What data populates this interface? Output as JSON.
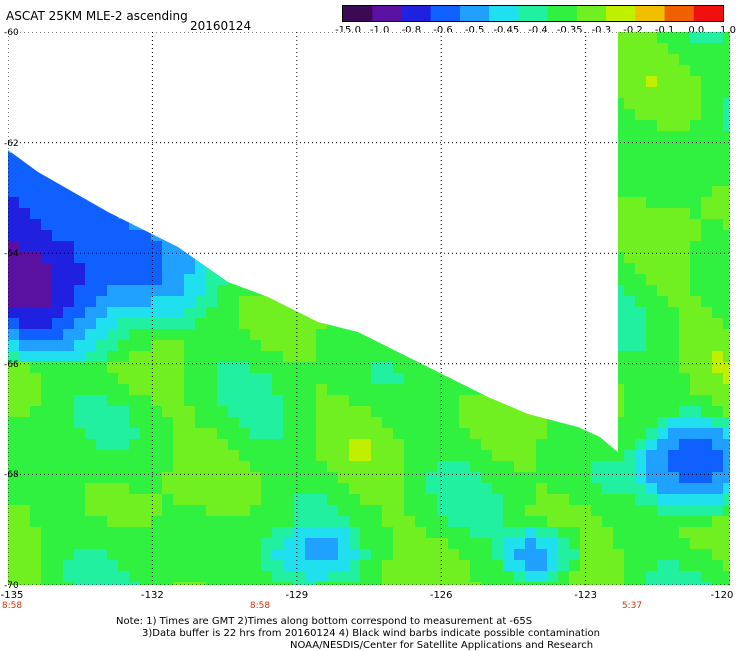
{
  "header": {
    "title": "ASCAT 25KM MLE-2 ascending",
    "date": "20160124"
  },
  "colorbar": {
    "labels": [
      "-15.0",
      "-1.0",
      "-0.8",
      "-0.6",
      "-0.5",
      "-0.45",
      "-0.4",
      "-0.35",
      "-0.3",
      "-0.2",
      "-0.1",
      "0.0",
      "1.0"
    ],
    "colors": [
      "#3a0a55",
      "#5a10a0",
      "#2020e0",
      "#1060ff",
      "#20a0ff",
      "#20e0f0",
      "#20f0a0",
      "#30f040",
      "#70f020",
      "#c0f000",
      "#f0c000",
      "#f06000",
      "#f01010"
    ]
  },
  "axes": {
    "lat_labels": [
      "-60",
      "-62",
      "-64",
      "-66",
      "-68",
      "-70"
    ],
    "lon_labels": [
      "-135",
      "-132",
      "-129",
      "-126",
      "-123",
      "-120"
    ],
    "lat_range": [
      -60,
      -70
    ],
    "lon_range": [
      -135,
      -120
    ]
  },
  "times": [
    "8:58",
    "8:58",
    "5:37"
  ],
  "notes": {
    "line1": "Note: 1) Times are GMT 2)Times along bottom correspond to measurement at -65S",
    "line2": "3)Data buffer is 22 hrs from 20160124 4) Black wind barbs indicate possible contamination",
    "line3": "NOAA/NESDIS/Center for Satellite Applications and Research"
  }
}
